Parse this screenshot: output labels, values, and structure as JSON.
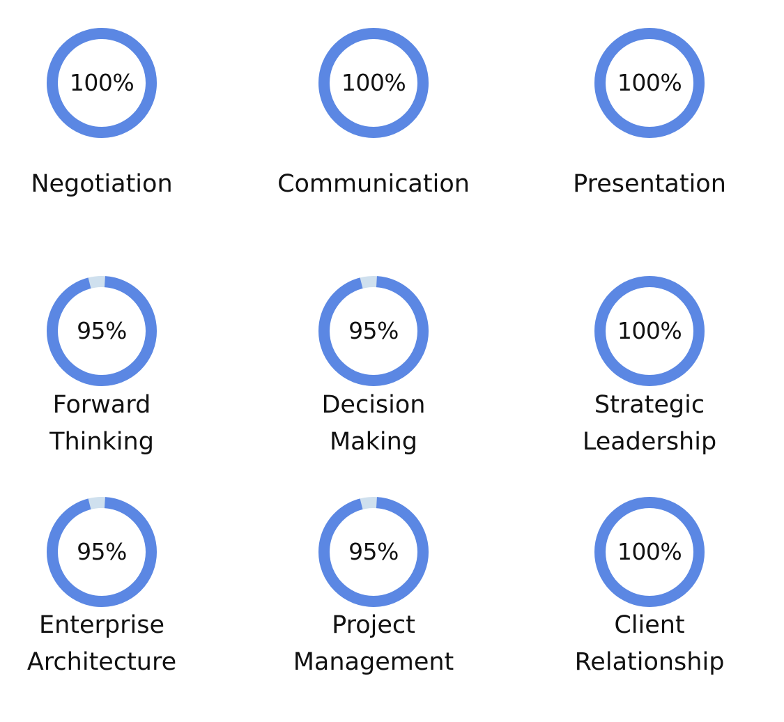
{
  "colors": {
    "ring": "#5b87e3",
    "track": "#cfe0ee",
    "text": "#111111"
  },
  "skills": [
    {
      "label": "Negotiation",
      "percent_text": "100%",
      "value": 100
    },
    {
      "label": "Communication",
      "percent_text": "100%",
      "value": 100
    },
    {
      "label": "Presentation",
      "percent_text": "100%",
      "value": 100
    },
    {
      "label": "Forward\nThinking",
      "percent_text": "95%",
      "value": 95
    },
    {
      "label": "Decision\nMaking",
      "percent_text": "95%",
      "value": 95
    },
    {
      "label": "Strategic\nLeadership",
      "percent_text": "100%",
      "value": 100
    },
    {
      "label": "Enterprise\nArchitecture",
      "percent_text": "95%",
      "value": 95
    },
    {
      "label": "Project\nManagement",
      "percent_text": "95%",
      "value": 95
    },
    {
      "label": "Client\nRelationship",
      "percent_text": "100%",
      "value": 100
    }
  ]
}
